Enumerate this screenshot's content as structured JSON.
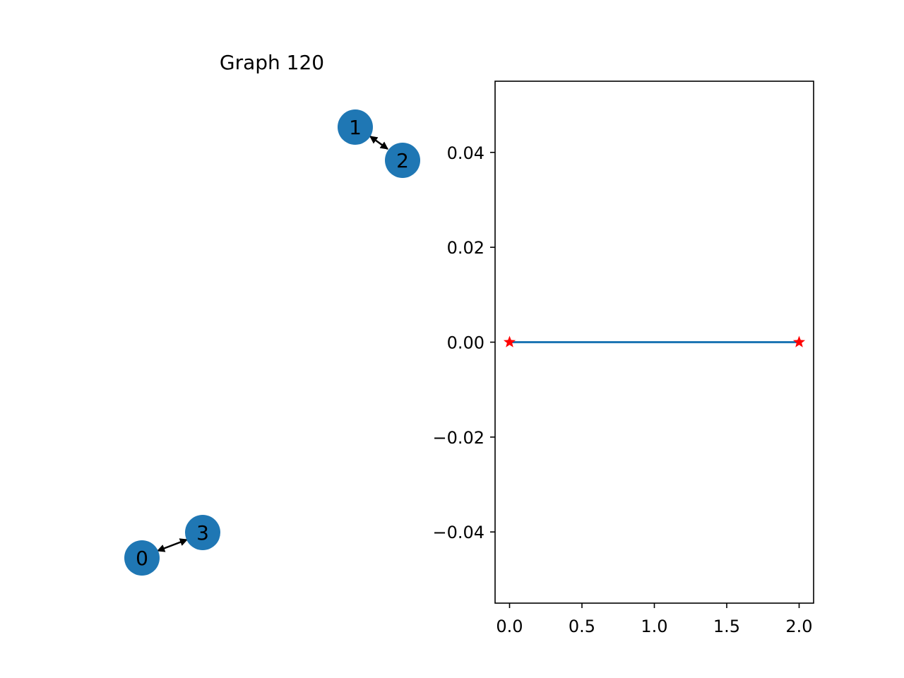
{
  "title": "Graph 120",
  "graph": {
    "node_color": "#1f77b4",
    "edge_color": "#000000",
    "nodes": [
      {
        "id": "0",
        "label": "0"
      },
      {
        "id": "1",
        "label": "1"
      },
      {
        "id": "2",
        "label": "2"
      },
      {
        "id": "3",
        "label": "3"
      }
    ],
    "edges": [
      {
        "source": "1",
        "target": "2",
        "bidirectional": true
      },
      {
        "source": "0",
        "target": "3",
        "bidirectional": true
      }
    ]
  },
  "chart_data": {
    "type": "line",
    "title": "",
    "xlabel": "",
    "ylabel": "",
    "xlim": [
      -0.1,
      2.1
    ],
    "ylim": [
      -0.055,
      0.055
    ],
    "grid": false,
    "xticks": [
      0.0,
      0.5,
      1.0,
      1.5,
      2.0
    ],
    "xtick_labels": [
      "0.0",
      "0.5",
      "1.0",
      "1.5",
      "2.0"
    ],
    "yticks": [
      0.04,
      0.02,
      0.0,
      -0.02,
      -0.04
    ],
    "ytick_labels": [
      "0.04",
      "0.02",
      "0.00",
      "−0.02",
      "−0.04"
    ],
    "series": [
      {
        "x": [
          0,
          2
        ],
        "y": [
          0,
          0
        ],
        "line_color": "#1f77b4",
        "marker": "star",
        "marker_color": "#ff0000"
      }
    ]
  }
}
